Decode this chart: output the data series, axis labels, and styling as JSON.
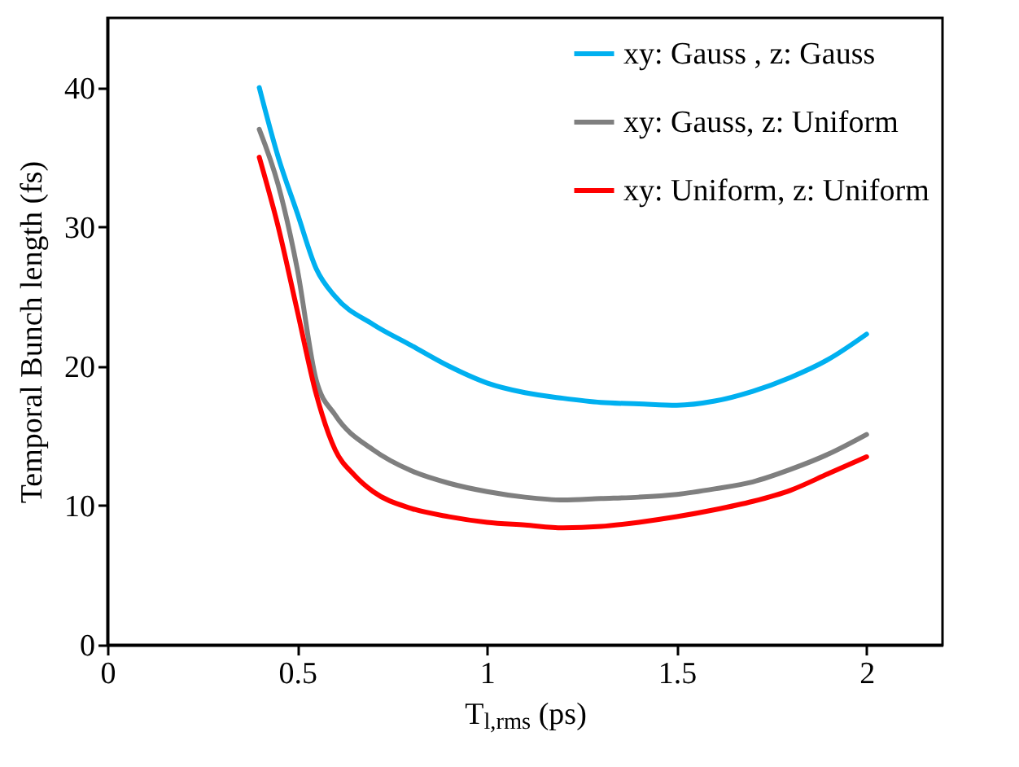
{
  "chart_data": {
    "type": "line",
    "xlabel": "T$_{l,rms}$ (ps)",
    "ylabel": "Temporal Bunch length (fs)",
    "xlim": [
      0,
      2.2
    ],
    "ylim": [
      0,
      45
    ],
    "xticks": [
      0,
      0.5,
      1,
      1.5,
      2
    ],
    "yticks": [
      0,
      10,
      20,
      30,
      40
    ],
    "legend": "top right",
    "line_style": "solid",
    "series": [
      {
        "name": "xy: Gauss , z: Gauss",
        "color": "#00b0f0",
        "x": [
          0.4,
          0.45,
          0.5,
          0.55,
          0.6,
          0.7,
          0.8,
          0.9,
          1.0,
          1.1,
          1.2,
          1.3,
          1.4,
          1.5,
          1.6,
          1.7,
          1.8,
          1.9,
          2.0
        ],
        "values": [
          40,
          35,
          31,
          27,
          25,
          23,
          21.5,
          20,
          18.8,
          18.1,
          17.7,
          17.4,
          17.3,
          17.2,
          17.5,
          18.2,
          19.2,
          20.5,
          22.3
        ]
      },
      {
        "name": "xy: Gauss, z: Uniform",
        "color": "#7f7f7f",
        "x": [
          0.4,
          0.45,
          0.5,
          0.55,
          0.6,
          0.7,
          0.8,
          0.9,
          1.0,
          1.1,
          1.2,
          1.3,
          1.4,
          1.5,
          1.6,
          1.7,
          1.8,
          1.9,
          2.0
        ],
        "values": [
          37,
          33,
          27,
          19,
          16.5,
          14,
          12.5,
          11.6,
          11,
          10.6,
          10.4,
          10.5,
          10.6,
          10.8,
          11.2,
          11.7,
          12.6,
          13.7,
          15.1
        ]
      },
      {
        "name": "xy: Uniform, z: Uniform",
        "color": "#ff0000",
        "x": [
          0.4,
          0.45,
          0.5,
          0.55,
          0.6,
          0.65,
          0.7,
          0.8,
          0.9,
          1.0,
          1.1,
          1.2,
          1.3,
          1.4,
          1.5,
          1.6,
          1.7,
          1.8,
          1.9,
          2.0
        ],
        "values": [
          35,
          30,
          24,
          18,
          14,
          12.2,
          11,
          9.8,
          9.2,
          8.8,
          8.6,
          8.4,
          8.5,
          8.8,
          9.2,
          9.7,
          10.3,
          11.1,
          12.3,
          13.5
        ]
      }
    ]
  }
}
